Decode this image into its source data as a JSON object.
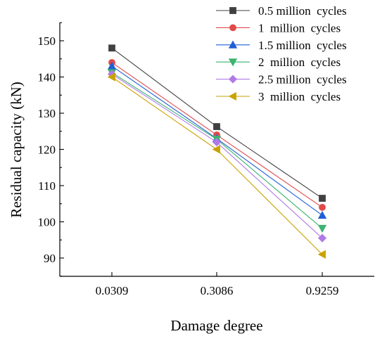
{
  "chart_data": {
    "type": "line",
    "title": "",
    "xlabel": "Damage degree",
    "ylabel": "Residual capacity (kN)",
    "categories": [
      "0.0309",
      "0.3086",
      "0.9259"
    ],
    "ylim": [
      83,
      155
    ],
    "yticks": [
      90,
      100,
      110,
      120,
      130,
      140,
      150
    ],
    "grid": false,
    "legend_position": "top-right",
    "series": [
      {
        "name": "0.5 million  cycles",
        "values": [
          148,
          126.3,
          106.5
        ],
        "color": "#404040",
        "marker": "square"
      },
      {
        "name": "1  million  cycles",
        "values": [
          144,
          124,
          104
        ],
        "color": "#e04a4a",
        "marker": "circle"
      },
      {
        "name": "1.5 million  cycles",
        "values": [
          143,
          123,
          101.8
        ],
        "color": "#1f5fd6",
        "marker": "triangle-up"
      },
      {
        "name": "2  million  cycles",
        "values": [
          141.2,
          122.8,
          98.2
        ],
        "color": "#3cb371",
        "marker": "triangle-down"
      },
      {
        "name": "2.5 million  cycles",
        "values": [
          140.8,
          122,
          95.5
        ],
        "color": "#b07ae6",
        "marker": "diamond"
      },
      {
        "name": "3  million  cycles",
        "values": [
          140,
          120,
          91
        ],
        "color": "#c9a200",
        "marker": "triangle-left"
      }
    ]
  }
}
